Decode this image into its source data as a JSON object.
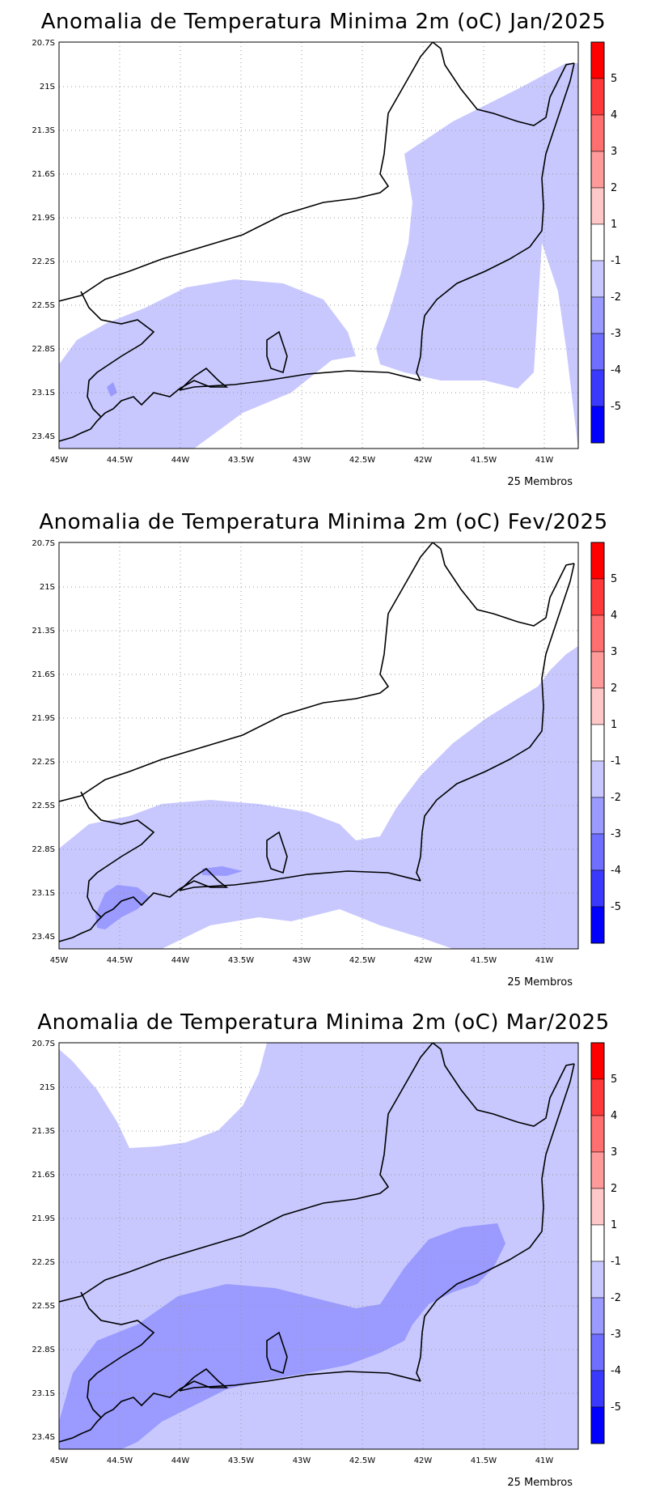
{
  "panels": [
    {
      "title": "Anomalia de Temperatura Minima 2m (oC) Jan/2025",
      "members": "25 Membros"
    },
    {
      "title": "Anomalia de Temperatura Minima 2m (oC) Fev/2025",
      "members": "25 Membros"
    },
    {
      "title": "Anomalia de Temperatura Minima 2m (oC) Mar/2025",
      "members": "25 Membros"
    }
  ],
  "axes": {
    "lat_labels": [
      "20.7S",
      "21S",
      "21.3S",
      "21.6S",
      "21.9S",
      "22.2S",
      "22.5S",
      "22.8S",
      "23.1S",
      "23.4S"
    ],
    "lon_labels": [
      "45W",
      "44.5W",
      "44W",
      "43.5W",
      "43W",
      "42.5W",
      "42W",
      "41.5W",
      "41W"
    ]
  },
  "colorbar": {
    "labels": [
      "5",
      "4",
      "3",
      "2",
      "1",
      "-1",
      "-2",
      "-3",
      "-4",
      "-5"
    ],
    "colors": [
      "#ff0000",
      "#ff3a3a",
      "#ff6f6f",
      "#ff9a9a",
      "#ffc8c8",
      "#ffffff",
      "#c8c8ff",
      "#9a9aff",
      "#6f6fff",
      "#3a3aff",
      "#0000ff"
    ]
  },
  "anomaly_colors": {
    "minus1_minus2": "#c8c8ff",
    "minus2_minus3": "#9a9aff"
  }
}
